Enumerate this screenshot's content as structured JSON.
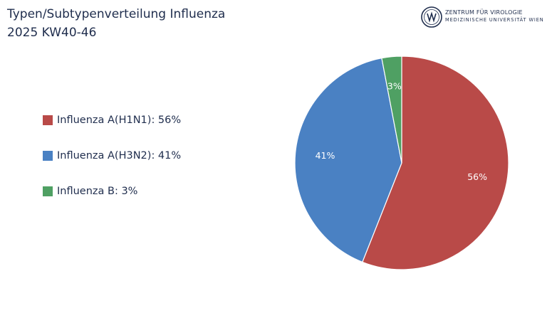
{
  "header": {
    "title_line1": "Typen/Subtypenverteilung Influenza",
    "title_line2": "2025 KW40-46"
  },
  "logo": {
    "line1": "ZENTRUM FÜR VIROLOGIE",
    "line2": "MEDIZINISCHE UNIVERSITÄT WIEN"
  },
  "chart_data": {
    "type": "pie",
    "title": "Typen/Subtypenverteilung Influenza",
    "subtitle": "2025 KW40-46",
    "legend_position": "left",
    "slices": [
      {
        "name": "Influenza A(H1N1)",
        "value": 56,
        "label": "56%",
        "legend": "Influenza A(H1N1): 56%",
        "color": "#b94a48"
      },
      {
        "name": "Influenza A(H3N2)",
        "value": 41,
        "label": "41%",
        "legend": "Influenza A(H3N2): 41%",
        "color": "#4a81c3"
      },
      {
        "name": "Influenza B",
        "value": 3,
        "label": "3%",
        "legend": "Influenza B: 3%",
        "color": "#4fa063"
      }
    ]
  }
}
